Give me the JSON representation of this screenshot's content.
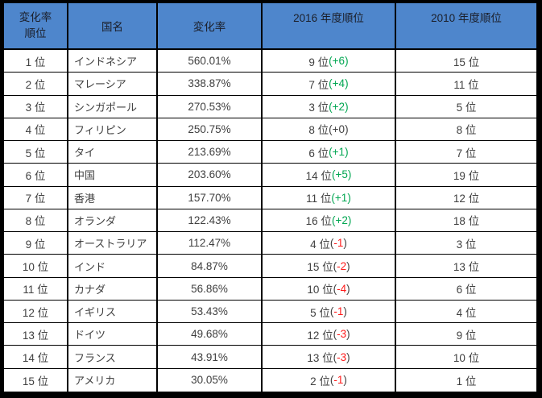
{
  "colors": {
    "header_bg": "#4e86cc",
    "header_text": "#1b1f2a",
    "body_text": "#404040",
    "border": "#000000",
    "positive": "#00a651",
    "negative": "#ff1a1a"
  },
  "format": {
    "paren_open": "(",
    "paren_close": ")"
  },
  "chart_data": {
    "type": "table",
    "columns": [
      "変化率\n順位",
      "国名",
      "変化率",
      "2016 年度順位",
      "2010 年度順位"
    ],
    "rows": [
      {
        "rank": "1 位",
        "country": "インドネシア",
        "rate": "560.01%",
        "rank_2016": "9 位",
        "delta": "+6",
        "tone": "up",
        "rank_2010": "15 位"
      },
      {
        "rank": "2 位",
        "country": "マレーシア",
        "rate": "338.87%",
        "rank_2016": "7 位",
        "delta": "+4",
        "tone": "up",
        "rank_2010": "11 位"
      },
      {
        "rank": "3 位",
        "country": "シンガポール",
        "rate": "270.53%",
        "rank_2016": "3 位",
        "delta": "+2",
        "tone": "up",
        "rank_2010": "5 位"
      },
      {
        "rank": "4 位",
        "country": "フィリピン",
        "rate": "250.75%",
        "rank_2016": "8 位",
        "delta": "+0",
        "tone": "zero",
        "rank_2010": "8 位"
      },
      {
        "rank": "5 位",
        "country": "タイ",
        "rate": "213.69%",
        "rank_2016": "6 位",
        "delta": "+1",
        "tone": "up",
        "rank_2010": "7 位"
      },
      {
        "rank": "6 位",
        "country": "中国",
        "rate": "203.60%",
        "rank_2016": "14 位",
        "delta": "+5",
        "tone": "up",
        "rank_2010": "19 位"
      },
      {
        "rank": "7 位",
        "country": "香港",
        "rate": "157.70%",
        "rank_2016": "11 位",
        "delta": "+1",
        "tone": "up",
        "rank_2010": "12 位"
      },
      {
        "rank": "8 位",
        "country": "オランダ",
        "rate": "122.43%",
        "rank_2016": "16 位",
        "delta": "+2",
        "tone": "up",
        "rank_2010": "18 位"
      },
      {
        "rank": "9 位",
        "country": "オーストラリア",
        "rate": "112.47%",
        "rank_2016": "4 位",
        "delta": "-1",
        "tone": "down",
        "rank_2010": "3 位"
      },
      {
        "rank": "10 位",
        "country": "インド",
        "rate": "84.87%",
        "rank_2016": "15 位",
        "delta": "-2",
        "tone": "down",
        "rank_2010": "13 位"
      },
      {
        "rank": "11 位",
        "country": "カナダ",
        "rate": "56.86%",
        "rank_2016": "10 位",
        "delta": "-4",
        "tone": "down",
        "rank_2010": "6 位"
      },
      {
        "rank": "12 位",
        "country": "イギリス",
        "rate": "53.43%",
        "rank_2016": "5 位",
        "delta": "-1",
        "tone": "down",
        "rank_2010": "4 位"
      },
      {
        "rank": "13 位",
        "country": "ドイツ",
        "rate": "49.68%",
        "rank_2016": "12 位",
        "delta": "-3",
        "tone": "down",
        "rank_2010": "9 位"
      },
      {
        "rank": "14 位",
        "country": "フランス",
        "rate": "43.91%",
        "rank_2016": "13 位",
        "delta": "-3",
        "tone": "down",
        "rank_2010": "10 位"
      },
      {
        "rank": "15 位",
        "country": "アメリカ",
        "rate": "30.05%",
        "rank_2016": "2 位",
        "delta": "-1",
        "tone": "down",
        "rank_2010": "1 位"
      }
    ]
  }
}
